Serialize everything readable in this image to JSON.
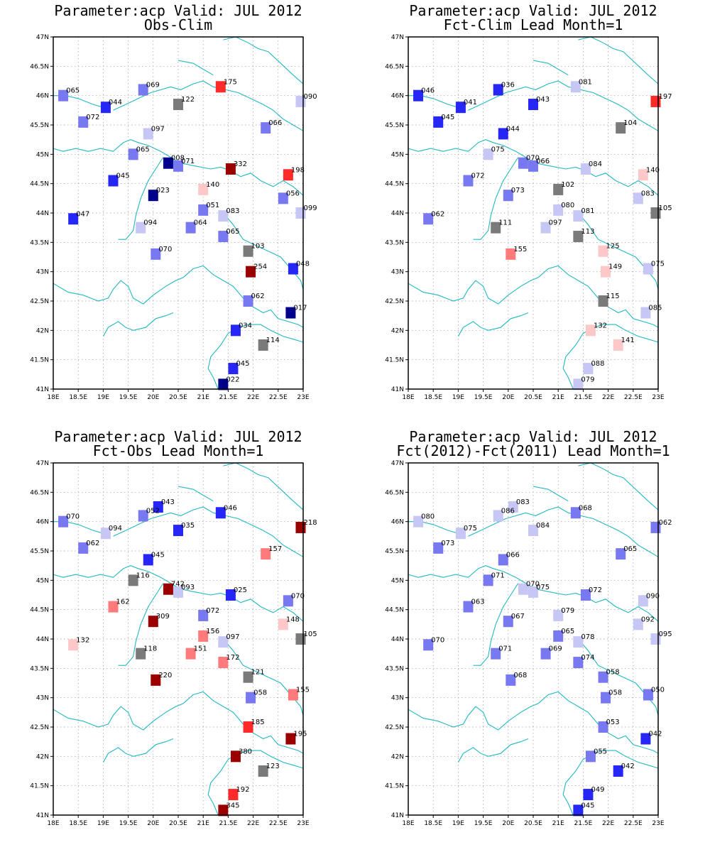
{
  "axes": {
    "lon": {
      "min": 18,
      "max": 23,
      "ticks": [
        18,
        18.5,
        19,
        19.5,
        20,
        20.5,
        21,
        21.5,
        22,
        22.5,
        23
      ],
      "labels": [
        "18E",
        "18.5E",
        "19E",
        "19.5E",
        "20E",
        "20.5E",
        "21E",
        "21.5E",
        "22E",
        "22.5E",
        "23E"
      ]
    },
    "lat": {
      "min": 41,
      "max": 47,
      "ticks": [
        41,
        41.5,
        42,
        42.5,
        43,
        43.5,
        44,
        44.5,
        45,
        45.5,
        46,
        46.5,
        47
      ],
      "labels": [
        "41N",
        "41.5N",
        "42N",
        "42.5N",
        "43N",
        "43.5N",
        "44N",
        "44.5N",
        "45N",
        "45.5N",
        "46N",
        "46.5N",
        "47N"
      ]
    }
  },
  "colors": {
    "coast": "#22b8c2",
    "grid": "#9a9a9a",
    "scale": {
      "b1": "#00008b",
      "b2": "#2727f5",
      "b3": "#7878f0",
      "b4": "#c7c7f5",
      "grey": "#7a7a7a",
      "r1": "#ffc8c8",
      "r2": "#ff7a7a",
      "r3": "#ff2a2a",
      "r4": "#9b0000"
    }
  },
  "panels": [
    {
      "title1": "Parameter:acp Valid: JUL 2012",
      "title2": "Obs-Clim",
      "stations": [
        {
          "lon": 18.2,
          "lat": 46.0,
          "label": "065",
          "c": "b3"
        },
        {
          "lon": 19.8,
          "lat": 46.1,
          "label": "069",
          "c": "b3"
        },
        {
          "lon": 21.35,
          "lat": 46.15,
          "label": "175",
          "c": "r3"
        },
        {
          "lon": 20.5,
          "lat": 45.85,
          "label": "122",
          "c": "grey"
        },
        {
          "lon": 22.95,
          "lat": 45.9,
          "label": "090",
          "c": "b4"
        },
        {
          "lon": 19.05,
          "lat": 45.8,
          "label": "044",
          "c": "b2"
        },
        {
          "lon": 18.6,
          "lat": 45.55,
          "label": "072",
          "c": "b3"
        },
        {
          "lon": 19.9,
          "lat": 45.35,
          "label": "097",
          "c": "b4"
        },
        {
          "lon": 22.25,
          "lat": 45.45,
          "label": "066",
          "c": "b3"
        },
        {
          "lon": 19.6,
          "lat": 45.0,
          "label": "065",
          "c": "b3"
        },
        {
          "lon": 20.3,
          "lat": 44.85,
          "label": "008",
          "c": "b1"
        },
        {
          "lon": 20.5,
          "lat": 44.8,
          "label": "071",
          "c": "b3"
        },
        {
          "lon": 21.55,
          "lat": 44.75,
          "label": "332",
          "c": "r4"
        },
        {
          "lon": 22.7,
          "lat": 44.65,
          "label": "198",
          "c": "r3"
        },
        {
          "lon": 19.2,
          "lat": 44.55,
          "label": "045",
          "c": "b2"
        },
        {
          "lon": 20.0,
          "lat": 44.3,
          "label": "023",
          "c": "b1"
        },
        {
          "lon": 21.0,
          "lat": 44.4,
          "label": "140",
          "c": "r1"
        },
        {
          "lon": 22.6,
          "lat": 44.25,
          "label": "056",
          "c": "b3"
        },
        {
          "lon": 18.4,
          "lat": 43.9,
          "label": "047",
          "c": "b2"
        },
        {
          "lon": 21.0,
          "lat": 44.05,
          "label": "051",
          "c": "b3"
        },
        {
          "lon": 21.4,
          "lat": 43.95,
          "label": "083",
          "c": "b4"
        },
        {
          "lon": 22.95,
          "lat": 44.0,
          "label": "099",
          "c": "b4"
        },
        {
          "lon": 19.75,
          "lat": 43.75,
          "label": "094",
          "c": "b4"
        },
        {
          "lon": 20.75,
          "lat": 43.75,
          "label": "064",
          "c": "b3"
        },
        {
          "lon": 21.4,
          "lat": 43.6,
          "label": "065",
          "c": "b3"
        },
        {
          "lon": 21.9,
          "lat": 43.35,
          "label": "103",
          "c": "grey"
        },
        {
          "lon": 20.05,
          "lat": 43.3,
          "label": "070",
          "c": "b3"
        },
        {
          "lon": 21.95,
          "lat": 43.0,
          "label": "254",
          "c": "r4"
        },
        {
          "lon": 22.8,
          "lat": 43.05,
          "label": "048",
          "c": "b2"
        },
        {
          "lon": 21.9,
          "lat": 42.5,
          "label": "062",
          "c": "b3"
        },
        {
          "lon": 22.75,
          "lat": 42.3,
          "label": "017",
          "c": "b1"
        },
        {
          "lon": 21.65,
          "lat": 42.0,
          "label": "034",
          "c": "b2"
        },
        {
          "lon": 22.2,
          "lat": 41.75,
          "label": "114",
          "c": "grey"
        },
        {
          "lon": 21.6,
          "lat": 41.35,
          "label": "045",
          "c": "b2"
        },
        {
          "lon": 21.4,
          "lat": 41.08,
          "label": "022",
          "c": "b1"
        }
      ]
    },
    {
      "title1": "Parameter:acp Valid: JUL 2012",
      "title2": "Fct-Clim Lead Month=1",
      "stations": [
        {
          "lon": 18.2,
          "lat": 46.0,
          "label": "046",
          "c": "b2"
        },
        {
          "lon": 19.8,
          "lat": 46.1,
          "label": "036",
          "c": "b2"
        },
        {
          "lon": 21.35,
          "lat": 46.15,
          "label": "081",
          "c": "b4"
        },
        {
          "lon": 22.95,
          "lat": 45.9,
          "label": "197",
          "c": "r3"
        },
        {
          "lon": 20.5,
          "lat": 45.85,
          "label": "043",
          "c": "b2"
        },
        {
          "lon": 19.05,
          "lat": 45.8,
          "label": "041",
          "c": "b2"
        },
        {
          "lon": 18.6,
          "lat": 45.55,
          "label": "045",
          "c": "b2"
        },
        {
          "lon": 22.25,
          "lat": 45.45,
          "label": "104",
          "c": "grey"
        },
        {
          "lon": 19.9,
          "lat": 45.35,
          "label": "044",
          "c": "b2"
        },
        {
          "lon": 19.6,
          "lat": 45.0,
          "label": "075",
          "c": "b4"
        },
        {
          "lon": 20.3,
          "lat": 44.85,
          "label": "070",
          "c": "b3"
        },
        {
          "lon": 20.5,
          "lat": 44.8,
          "label": "066",
          "c": "b3"
        },
        {
          "lon": 21.55,
          "lat": 44.75,
          "label": "084",
          "c": "b4"
        },
        {
          "lon": 22.7,
          "lat": 44.65,
          "label": "140",
          "c": "r1"
        },
        {
          "lon": 19.2,
          "lat": 44.55,
          "label": "072",
          "c": "b3"
        },
        {
          "lon": 20.0,
          "lat": 44.3,
          "label": "073",
          "c": "b3"
        },
        {
          "lon": 21.0,
          "lat": 44.4,
          "label": "102",
          "c": "grey"
        },
        {
          "lon": 22.6,
          "lat": 44.25,
          "label": "083",
          "c": "b4"
        },
        {
          "lon": 18.4,
          "lat": 43.9,
          "label": "062",
          "c": "b3"
        },
        {
          "lon": 21.0,
          "lat": 44.05,
          "label": "080",
          "c": "b4"
        },
        {
          "lon": 21.4,
          "lat": 43.95,
          "label": "081",
          "c": "b4"
        },
        {
          "lon": 22.95,
          "lat": 44.0,
          "label": "105",
          "c": "grey"
        },
        {
          "lon": 19.75,
          "lat": 43.75,
          "label": "111",
          "c": "grey"
        },
        {
          "lon": 20.75,
          "lat": 43.75,
          "label": "097",
          "c": "b4"
        },
        {
          "lon": 21.4,
          "lat": 43.6,
          "label": "113",
          "c": "grey"
        },
        {
          "lon": 21.9,
          "lat": 43.35,
          "label": "125",
          "c": "r1"
        },
        {
          "lon": 20.05,
          "lat": 43.3,
          "label": "155",
          "c": "r2"
        },
        {
          "lon": 21.95,
          "lat": 43.0,
          "label": "149",
          "c": "r1"
        },
        {
          "lon": 22.8,
          "lat": 43.05,
          "label": "075",
          "c": "b4"
        },
        {
          "lon": 21.9,
          "lat": 42.5,
          "label": "115",
          "c": "grey"
        },
        {
          "lon": 22.75,
          "lat": 42.3,
          "label": "085",
          "c": "b4"
        },
        {
          "lon": 21.65,
          "lat": 42.0,
          "label": "132",
          "c": "r1"
        },
        {
          "lon": 22.2,
          "lat": 41.75,
          "label": "141",
          "c": "r1"
        },
        {
          "lon": 21.6,
          "lat": 41.35,
          "label": "088",
          "c": "b4"
        },
        {
          "lon": 21.4,
          "lat": 41.08,
          "label": "079",
          "c": "b4"
        }
      ]
    },
    {
      "title1": "Parameter:acp Valid: JUL 2012",
      "title2": "Fct-Obs Lead Month=1",
      "stations": [
        {
          "lon": 18.2,
          "lat": 46.0,
          "label": "070",
          "c": "b3"
        },
        {
          "lon": 20.1,
          "lat": 46.25,
          "label": "043",
          "c": "b2"
        },
        {
          "lon": 19.8,
          "lat": 46.1,
          "label": "052",
          "c": "b3"
        },
        {
          "lon": 21.35,
          "lat": 46.15,
          "label": "046",
          "c": "b2"
        },
        {
          "lon": 22.95,
          "lat": 45.9,
          "label": "218",
          "c": "r4"
        },
        {
          "lon": 19.05,
          "lat": 45.8,
          "label": "094",
          "c": "b4"
        },
        {
          "lon": 20.5,
          "lat": 45.85,
          "label": "035",
          "c": "b2"
        },
        {
          "lon": 18.6,
          "lat": 45.55,
          "label": "062",
          "c": "b3"
        },
        {
          "lon": 22.25,
          "lat": 45.45,
          "label": "157",
          "c": "r2"
        },
        {
          "lon": 19.9,
          "lat": 45.35,
          "label": "045",
          "c": "b2"
        },
        {
          "lon": 19.6,
          "lat": 45.0,
          "label": "116",
          "c": "grey"
        },
        {
          "lon": 20.3,
          "lat": 44.85,
          "label": "742",
          "c": "r4"
        },
        {
          "lon": 20.5,
          "lat": 44.8,
          "label": "093",
          "c": "b4"
        },
        {
          "lon": 21.55,
          "lat": 44.75,
          "label": "025",
          "c": "b2"
        },
        {
          "lon": 22.7,
          "lat": 44.65,
          "label": "070",
          "c": "b3"
        },
        {
          "lon": 19.2,
          "lat": 44.55,
          "label": "162",
          "c": "r2"
        },
        {
          "lon": 20.0,
          "lat": 44.3,
          "label": "309",
          "c": "r4"
        },
        {
          "lon": 21.0,
          "lat": 44.4,
          "label": "072",
          "c": "b3"
        },
        {
          "lon": 22.6,
          "lat": 44.25,
          "label": "148",
          "c": "r1"
        },
        {
          "lon": 18.4,
          "lat": 43.9,
          "label": "132",
          "c": "r1"
        },
        {
          "lon": 21.0,
          "lat": 44.05,
          "label": "156",
          "c": "r2"
        },
        {
          "lon": 21.4,
          "lat": 43.95,
          "label": "097",
          "c": "b4"
        },
        {
          "lon": 22.95,
          "lat": 44.0,
          "label": "105",
          "c": "grey"
        },
        {
          "lon": 19.75,
          "lat": 43.75,
          "label": "118",
          "c": "grey"
        },
        {
          "lon": 20.75,
          "lat": 43.75,
          "label": "151",
          "c": "r2"
        },
        {
          "lon": 21.4,
          "lat": 43.6,
          "label": "172",
          "c": "r2"
        },
        {
          "lon": 21.9,
          "lat": 43.35,
          "label": "121",
          "c": "grey"
        },
        {
          "lon": 20.05,
          "lat": 43.3,
          "label": "220",
          "c": "r4"
        },
        {
          "lon": 21.95,
          "lat": 43.0,
          "label": "058",
          "c": "b3"
        },
        {
          "lon": 22.8,
          "lat": 43.05,
          "label": "155",
          "c": "r2"
        },
        {
          "lon": 21.9,
          "lat": 42.5,
          "label": "185",
          "c": "r3"
        },
        {
          "lon": 22.75,
          "lat": 42.3,
          "label": "195",
          "c": "r4"
        },
        {
          "lon": 21.65,
          "lat": 42.0,
          "label": "380",
          "c": "r4"
        },
        {
          "lon": 22.2,
          "lat": 41.75,
          "label": "123",
          "c": "grey"
        },
        {
          "lon": 21.6,
          "lat": 41.35,
          "label": "192",
          "c": "r3"
        },
        {
          "lon": 21.4,
          "lat": 41.08,
          "label": "345",
          "c": "r4"
        }
      ]
    },
    {
      "title1": "Parameter:acp Valid: JUL 2012",
      "title2": "Fct(2012)-Fct(2011) Lead Month=1",
      "stations": [
        {
          "lon": 18.2,
          "lat": 46.0,
          "label": "080",
          "c": "b4"
        },
        {
          "lon": 20.1,
          "lat": 46.25,
          "label": "083",
          "c": "b4"
        },
        {
          "lon": 19.8,
          "lat": 46.1,
          "label": "086",
          "c": "b4"
        },
        {
          "lon": 21.35,
          "lat": 46.15,
          "label": "068",
          "c": "b3"
        },
        {
          "lon": 22.95,
          "lat": 45.9,
          "label": "062",
          "c": "b3"
        },
        {
          "lon": 19.05,
          "lat": 45.8,
          "label": "075",
          "c": "b4"
        },
        {
          "lon": 20.5,
          "lat": 45.85,
          "label": "084",
          "c": "b4"
        },
        {
          "lon": 18.6,
          "lat": 45.55,
          "label": "073",
          "c": "b3"
        },
        {
          "lon": 22.25,
          "lat": 45.45,
          "label": "065",
          "c": "b3"
        },
        {
          "lon": 19.9,
          "lat": 45.35,
          "label": "066",
          "c": "b3"
        },
        {
          "lon": 19.6,
          "lat": 45.0,
          "label": "071",
          "c": "b3"
        },
        {
          "lon": 20.3,
          "lat": 44.85,
          "label": "070",
          "c": "b4"
        },
        {
          "lon": 20.5,
          "lat": 44.8,
          "label": "075",
          "c": "b4"
        },
        {
          "lon": 21.55,
          "lat": 44.75,
          "label": "072",
          "c": "b3"
        },
        {
          "lon": 22.7,
          "lat": 44.65,
          "label": "090",
          "c": "b4"
        },
        {
          "lon": 19.2,
          "lat": 44.55,
          "label": "063",
          "c": "b3"
        },
        {
          "lon": 20.0,
          "lat": 44.3,
          "label": "067",
          "c": "b3"
        },
        {
          "lon": 21.0,
          "lat": 44.4,
          "label": "079",
          "c": "b4"
        },
        {
          "lon": 22.6,
          "lat": 44.25,
          "label": "092",
          "c": "b4"
        },
        {
          "lon": 18.4,
          "lat": 43.9,
          "label": "070",
          "c": "b3"
        },
        {
          "lon": 21.0,
          "lat": 44.05,
          "label": "065",
          "c": "b3"
        },
        {
          "lon": 21.4,
          "lat": 43.95,
          "label": "078",
          "c": "b4"
        },
        {
          "lon": 22.95,
          "lat": 44.0,
          "label": "095",
          "c": "b4"
        },
        {
          "lon": 19.75,
          "lat": 43.75,
          "label": "071",
          "c": "b3"
        },
        {
          "lon": 20.75,
          "lat": 43.75,
          "label": "069",
          "c": "b3"
        },
        {
          "lon": 21.4,
          "lat": 43.6,
          "label": "074",
          "c": "b3"
        },
        {
          "lon": 21.9,
          "lat": 43.35,
          "label": "058",
          "c": "b3"
        },
        {
          "lon": 20.05,
          "lat": 43.3,
          "label": "068",
          "c": "b3"
        },
        {
          "lon": 21.95,
          "lat": 43.0,
          "label": "058",
          "c": "b3"
        },
        {
          "lon": 22.8,
          "lat": 43.05,
          "label": "050",
          "c": "b3"
        },
        {
          "lon": 21.9,
          "lat": 42.5,
          "label": "053",
          "c": "b3"
        },
        {
          "lon": 22.75,
          "lat": 42.3,
          "label": "042",
          "c": "b2"
        },
        {
          "lon": 21.65,
          "lat": 42.0,
          "label": "055",
          "c": "b3"
        },
        {
          "lon": 22.2,
          "lat": 41.75,
          "label": "042",
          "c": "b2"
        },
        {
          "lon": 21.6,
          "lat": 41.35,
          "label": "049",
          "c": "b2"
        },
        {
          "lon": 21.4,
          "lat": 41.08,
          "label": "045",
          "c": "b2"
        }
      ]
    }
  ]
}
